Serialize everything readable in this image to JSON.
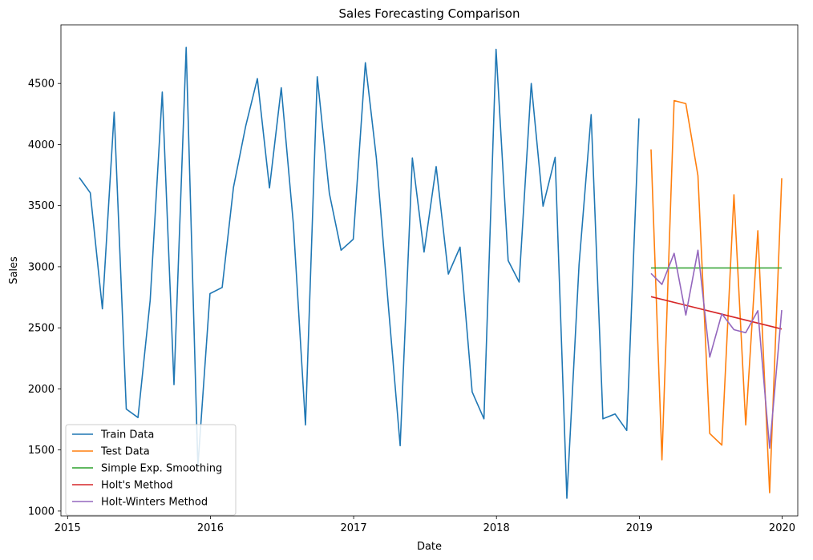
{
  "chart_data": {
    "type": "line",
    "title": "Sales Forecasting Comparison",
    "xlabel": "Date",
    "ylabel": "Sales",
    "xlim": [
      "2014-12-15",
      "2020-02-10"
    ],
    "ylim": [
      960,
      4980
    ],
    "x_ticks": [
      "2015",
      "2016",
      "2017",
      "2018",
      "2019",
      "2020"
    ],
    "y_ticks": [
      1000,
      1500,
      2000,
      2500,
      3000,
      3500,
      4000,
      4500
    ],
    "legend_position": "lower-left",
    "grid": false,
    "series": [
      {
        "name": "Train Data",
        "color": "#1f77b4",
        "x": [
          "2015-01-31",
          "2015-02-28",
          "2015-03-31",
          "2015-04-30",
          "2015-05-31",
          "2015-06-30",
          "2015-07-31",
          "2015-08-31",
          "2015-09-30",
          "2015-10-31",
          "2015-11-30",
          "2015-12-31",
          "2016-01-31",
          "2016-02-29",
          "2016-03-31",
          "2016-04-30",
          "2016-05-31",
          "2016-06-30",
          "2016-07-31",
          "2016-08-31",
          "2016-09-30",
          "2016-10-31",
          "2016-11-30",
          "2016-12-31",
          "2017-01-31",
          "2017-02-28",
          "2017-03-31",
          "2017-04-30",
          "2017-05-31",
          "2017-06-30",
          "2017-07-31",
          "2017-08-31",
          "2017-09-30",
          "2017-10-31",
          "2017-11-30",
          "2017-12-31",
          "2018-01-31",
          "2018-02-28",
          "2018-03-31",
          "2018-04-30",
          "2018-05-31",
          "2018-06-30",
          "2018-07-31",
          "2018-08-31",
          "2018-09-30",
          "2018-10-31",
          "2018-11-30",
          "2018-12-31"
        ],
        "values": [
          3730,
          3605,
          2655,
          4265,
          1835,
          1765,
          2725,
          4430,
          2035,
          4795,
          1365,
          2780,
          2830,
          3650,
          4150,
          4540,
          3645,
          4465,
          3350,
          1705,
          4555,
          3600,
          3135,
          3225,
          4670,
          3890,
          2670,
          1535,
          3890,
          3120,
          3820,
          2940,
          3160,
          1975,
          1755,
          4780,
          3050,
          2875,
          4500,
          3495,
          3895,
          1105,
          3015,
          4245,
          1755,
          1795,
          1660,
          4215
        ]
      },
      {
        "name": "Test Data",
        "color": "#ff7f0e",
        "x": [
          "2019-01-31",
          "2019-02-28",
          "2019-03-31",
          "2019-04-30",
          "2019-05-31",
          "2019-06-30",
          "2019-07-31",
          "2019-08-31",
          "2019-09-30",
          "2019-10-31",
          "2019-11-30",
          "2019-12-31"
        ],
        "values": [
          3960,
          1420,
          4360,
          4335,
          3745,
          1635,
          1540,
          3590,
          1705,
          3295,
          1150,
          3725
        ]
      },
      {
        "name": "Simple Exp. Smoothing",
        "color": "#2ca02c",
        "x": [
          "2019-01-31",
          "2019-12-31"
        ],
        "values": [
          2990,
          2990
        ]
      },
      {
        "name": "Holt's Method",
        "color": "#d62728",
        "x": [
          "2019-01-31",
          "2019-12-31"
        ],
        "values": [
          2755,
          2490
        ]
      },
      {
        "name": "Holt-Winters Method",
        "color": "#9467bd",
        "x": [
          "2019-01-31",
          "2019-02-28",
          "2019-03-31",
          "2019-04-30",
          "2019-05-31",
          "2019-06-30",
          "2019-07-31",
          "2019-08-31",
          "2019-09-30",
          "2019-10-31",
          "2019-11-30",
          "2019-12-31"
        ],
        "values": [
          2945,
          2855,
          3110,
          2605,
          3135,
          2260,
          2615,
          2485,
          2460,
          2640,
          1515,
          2645
        ]
      }
    ]
  }
}
